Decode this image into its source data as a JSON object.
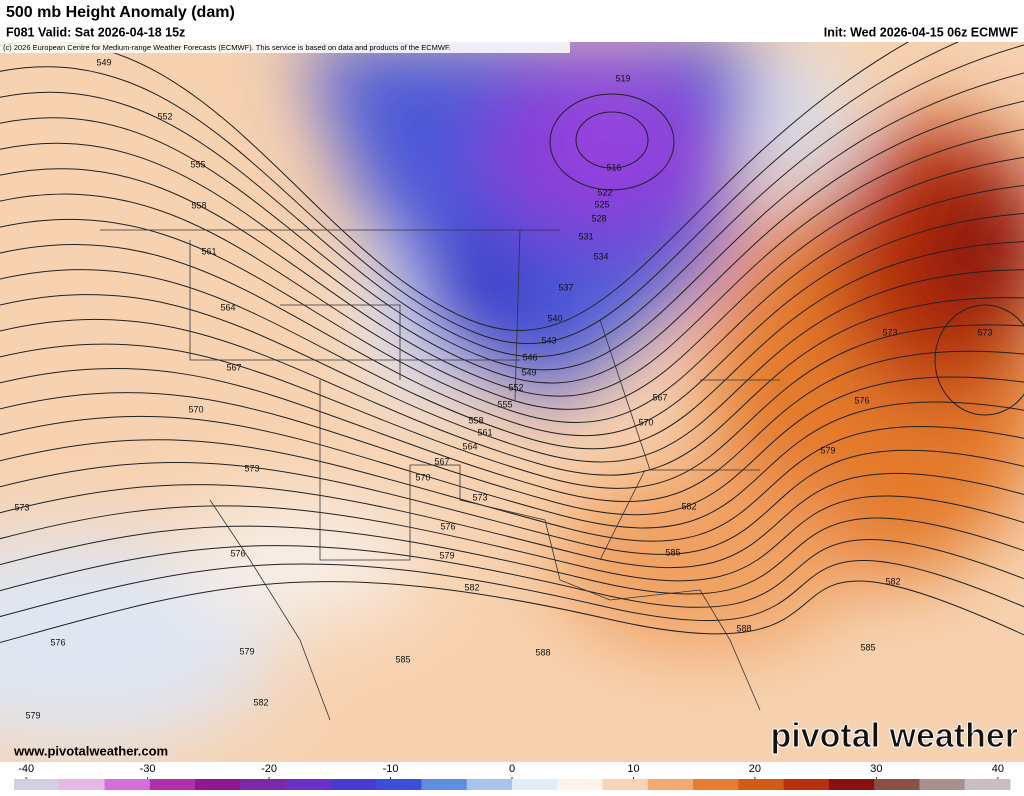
{
  "header": {
    "title": "500 mb Height Anomaly (dam)",
    "valid": "F081 Valid: Sat 2026-04-18 15z",
    "init": "Init: Wed 2026-04-15 06z ECMWF",
    "credit": "(c) 2026 European Centre for Medium-range Weather Forecasts (ECMWF). This service is based on data and products of the ECMWF."
  },
  "contour_labels": [
    549,
    552,
    555,
    558,
    561,
    564,
    567,
    570,
    573,
    573,
    576,
    579,
    576,
    579,
    582,
    582,
    585,
    588,
    579,
    576,
    573,
    570,
    567,
    564,
    561,
    558,
    555,
    552,
    549,
    546,
    543,
    540,
    537,
    534,
    531,
    528,
    525,
    522,
    519,
    516,
    567,
    570,
    582,
    585,
    588,
    579,
    576,
    573,
    573,
    582,
    585
  ],
  "footer": {
    "website": "www.pivotalweather.com",
    "brand": "pivotal weather"
  },
  "colorbar": {
    "range": [
      -41,
      41
    ],
    "ticks": [
      -40,
      -30,
      -20,
      -10,
      0,
      10,
      20,
      30,
      40
    ],
    "colors": [
      "#d0d0e0",
      "#e6b8e6",
      "#d070d8",
      "#b030b0",
      "#901890",
      "#7a2aa8",
      "#6a30c8",
      "#4a3ad0",
      "#3a50d8",
      "#5f8ee0",
      "#a8c4ec",
      "#e2ecf6",
      "#fbf3ec",
      "#f8d4b4",
      "#f2aa70",
      "#e67c30",
      "#d45a18",
      "#b8300e",
      "#8a1010",
      "#8a5048",
      "#a89090",
      "#c8c0c0"
    ]
  }
}
